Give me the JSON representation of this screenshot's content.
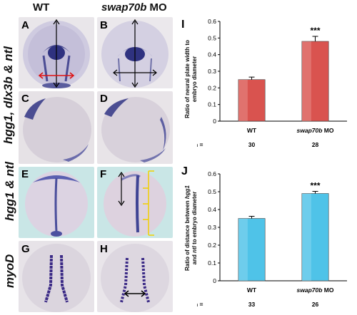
{
  "header": {
    "wt": "WT",
    "mo_gene": "swap70b",
    "mo_suffix": " MO"
  },
  "row_labels": {
    "row1": "hgg1, dlx3b & ntl",
    "row2": "hgg1 & ntl",
    "row3": "myoD"
  },
  "panel_letters": [
    "A",
    "B",
    "C",
    "D",
    "E",
    "F",
    "G",
    "H"
  ],
  "chart_letters": {
    "top": "I",
    "bottom": "J"
  },
  "colors": {
    "bar_red": "#d9534f",
    "bar_cyan": "#4fc3e8",
    "arrow_red": "#e01010",
    "tick_yellow": "#f2d000"
  },
  "chart_data": [
    {
      "type": "bar",
      "categories": [
        "WT",
        "swap70b MO"
      ],
      "values": [
        0.25,
        0.48
      ],
      "errors": [
        0.015,
        0.03
      ],
      "significance": [
        "",
        "***"
      ],
      "n": [
        "30",
        "28"
      ],
      "ylim": [
        0,
        0.6
      ],
      "yticks": [
        "0",
        "0.1",
        "0.2",
        "0.3",
        "0.4",
        "0.5",
        "0.6"
      ],
      "ylabel_line1": "Ratio of neural plate width to",
      "ylabel_line2": "embryo diameter",
      "n_label": "n ="
    },
    {
      "type": "bar",
      "categories": [
        "WT",
        "swap70b MO"
      ],
      "values": [
        0.35,
        0.49
      ],
      "errors": [
        0.012,
        0.012
      ],
      "significance": [
        "",
        "***"
      ],
      "n": [
        "33",
        "26"
      ],
      "ylim": [
        0,
        0.6
      ],
      "yticks": [
        "0",
        "0.1",
        "0.2",
        "0.3",
        "0.4",
        "0.5",
        "0.6"
      ],
      "ylabel_line1a": "Ratio of distance between ",
      "ylabel_gene1": "hgg1",
      "ylabel_line2a": "and ",
      "ylabel_gene2": "ntl",
      "ylabel_line2b": " to embryo diameter",
      "n_label": "n ="
    }
  ]
}
